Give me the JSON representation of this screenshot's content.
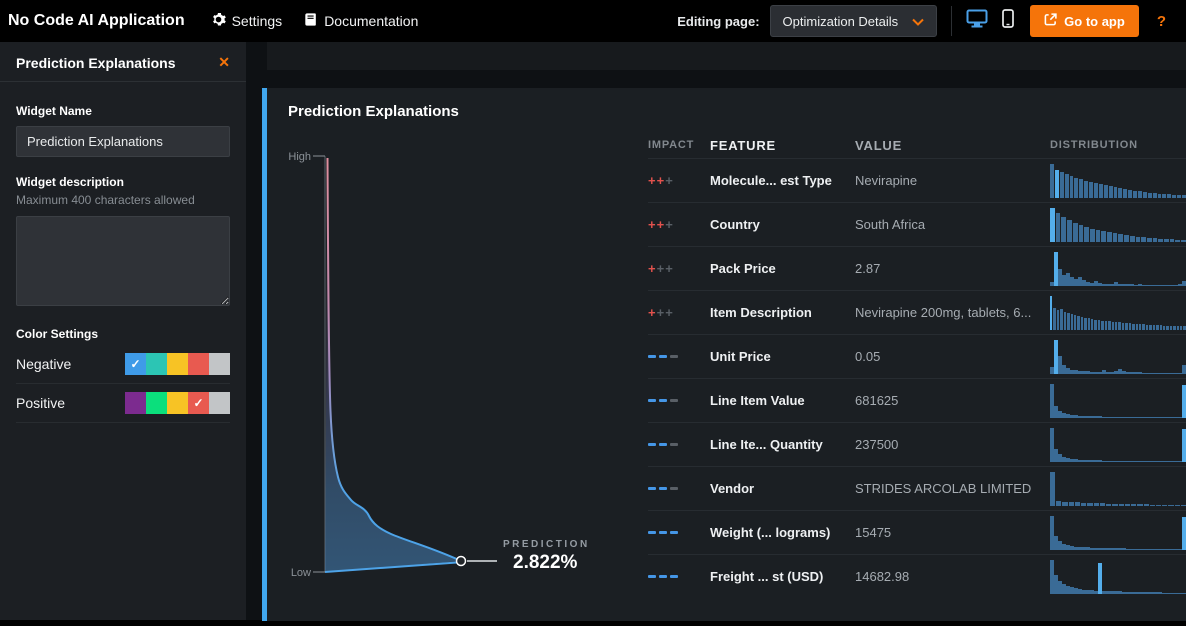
{
  "topbar": {
    "app_title": "No Code AI Application",
    "settings_label": "Settings",
    "documentation_label": "Documentation",
    "editing_page_label": "Editing page:",
    "page_selector_value": "Optimization Details",
    "go_to_app_label": "Go to app",
    "help_label": "?"
  },
  "sidebar": {
    "title": "Prediction Explanations",
    "close_glyph": "✕",
    "widget_name_label": "Widget Name",
    "widget_name_value": "Prediction Explanations",
    "widget_description_label": "Widget description",
    "widget_description_hint": "Maximum 400 characters allowed",
    "widget_description_value": "",
    "color_settings_label": "Color Settings",
    "negative_label": "Negative",
    "positive_label": "Positive",
    "negative_palette": [
      "#3f9be8",
      "#2cc5b4",
      "#f7c325",
      "#e85a50",
      "#c2c5c7"
    ],
    "negative_selected_index": 0,
    "positive_palette": [
      "#7c2b8f",
      "#0bdf7c",
      "#f7c325",
      "#e85a50",
      "#c2c5c7"
    ],
    "positive_selected_index": 3,
    "check_glyph": "✓"
  },
  "widget": {
    "title": "Prediction Explanations"
  },
  "chart_data": {
    "type": "area",
    "title": "Prediction Explanations",
    "y_axis_high_label": "High",
    "y_axis_low_label": "Low",
    "prediction_label": "PREDICTION",
    "prediction_value": "2.822%",
    "accent_color": "#41a7ee",
    "curve_top_color": "#df8f9e",
    "curve_bottom_color": "#4da3e8"
  },
  "table": {
    "columns": [
      "IMPACT",
      "FEATURE",
      "VALUE",
      "DISTRIBUTION"
    ],
    "impact_colors": {
      "positive": "#e2524d",
      "negative": "#4596e6",
      "inactive": "#595f66"
    },
    "dist_colors": {
      "bar": "#3a6b96",
      "highlight": "#54aeeb"
    },
    "rows": [
      {
        "impact_sign": "+",
        "impact_strength": 2,
        "feature": "Molecule... est Type",
        "value": "Nevirapine",
        "dist": {
          "gap": 1,
          "highlight": 1,
          "bars": [
            100,
            82,
            74,
            68,
            63,
            58,
            54,
            50,
            46,
            43,
            40,
            37,
            34,
            31,
            28,
            25,
            22,
            20,
            18,
            16,
            14,
            12,
            11,
            10,
            9,
            8,
            7,
            6
          ]
        }
      },
      {
        "impact_sign": "+",
        "impact_strength": 2,
        "feature": "Country",
        "value": "South Africa",
        "dist": {
          "gap": 1,
          "highlight": 0,
          "bars": [
            100,
            83,
            72,
            62,
            54,
            48,
            43,
            38,
            34,
            30,
            27,
            24,
            21,
            18,
            16,
            14,
            12,
            10,
            9,
            8,
            7,
            6,
            5,
            5
          ]
        }
      },
      {
        "impact_sign": "+",
        "impact_strength": 1,
        "feature": "Pack Price",
        "value": "2.87",
        "dist": {
          "gap": 0,
          "highlight": 1,
          "bars": [
            10,
            100,
            48,
            30,
            36,
            24,
            18,
            26,
            16,
            11,
            8,
            13,
            7,
            5,
            5,
            4,
            11,
            5,
            4,
            3,
            3,
            2,
            3,
            2,
            2,
            2,
            2,
            2,
            2,
            2,
            2,
            2,
            3,
            14
          ]
        }
      },
      {
        "impact_sign": "+",
        "impact_strength": 1,
        "feature": "Item Description",
        "value": "Nevirapine 200mg, tablets, 6...",
        "dist": {
          "gap": 1,
          "highlight": 0,
          "bars": [
            100,
            62,
            57,
            59,
            52,
            48,
            45,
            42,
            40,
            37,
            35,
            33,
            31,
            29,
            28,
            26,
            25,
            24,
            23,
            22,
            21,
            20,
            19,
            18,
            17,
            16,
            15,
            15,
            14,
            13,
            13,
            12,
            12,
            11,
            11,
            10,
            10,
            9,
            9,
            9
          ]
        }
      },
      {
        "impact_sign": "-",
        "impact_strength": 2,
        "feature": "Unit Price",
        "value": "0.05",
        "dist": {
          "gap": 0,
          "highlight": 1,
          "bars": [
            18,
            100,
            52,
            26,
            16,
            11,
            9,
            8,
            7,
            6,
            5,
            5,
            4,
            9,
            5,
            4,
            6,
            13,
            6,
            4,
            3,
            3,
            3,
            2,
            2,
            2,
            2,
            2,
            2,
            2,
            2,
            2,
            2,
            24
          ]
        }
      },
      {
        "impact_sign": "-",
        "impact_strength": 2,
        "feature": "Line Item Value",
        "value": "681625",
        "dist": {
          "gap": 0,
          "highlight": 33,
          "bars": [
            100,
            34,
            20,
            13,
            9,
            7,
            6,
            5,
            4,
            4,
            3,
            3,
            3,
            2,
            2,
            2,
            2,
            2,
            2,
            2,
            2,
            1,
            1,
            1,
            1,
            1,
            1,
            1,
            1,
            1,
            1,
            1,
            1,
            95
          ]
        }
      },
      {
        "impact_sign": "-",
        "impact_strength": 2,
        "feature": "Line Ite... Quantity",
        "value": "237500",
        "dist": {
          "gap": 0,
          "highlight": 33,
          "bars": [
            100,
            36,
            22,
            14,
            10,
            8,
            6,
            5,
            4,
            4,
            3,
            3,
            3,
            2,
            2,
            2,
            2,
            2,
            2,
            2,
            2,
            1,
            1,
            1,
            1,
            1,
            1,
            1,
            1,
            1,
            1,
            1,
            1,
            95
          ]
        }
      },
      {
        "impact_sign": "-",
        "impact_strength": 2,
        "feature": "Vendor",
        "value": "STRIDES ARCOLAB LIMITED",
        "dist": {
          "gap": 1,
          "highlight": null,
          "bars": [
            100,
            13,
            11,
            10,
            9,
            8,
            7,
            6,
            6,
            5,
            5,
            4,
            4,
            3,
            3,
            3,
            2,
            2,
            2,
            2,
            1,
            1
          ]
        }
      },
      {
        "impact_sign": "-",
        "impact_strength": 3,
        "feature": "Weight (... lograms)",
        "value": "15475",
        "dist": {
          "gap": 0,
          "highlight": 33,
          "bars": [
            100,
            40,
            24,
            16,
            12,
            10,
            8,
            7,
            6,
            6,
            5,
            5,
            4,
            4,
            4,
            3,
            3,
            3,
            3,
            2,
            2,
            2,
            2,
            2,
            2,
            2,
            2,
            2,
            1,
            1,
            1,
            1,
            1,
            95
          ]
        }
      },
      {
        "impact_sign": "-",
        "impact_strength": 3,
        "feature": "Freight ... st (USD)",
        "value": "14682.98",
        "dist": {
          "gap": 0,
          "highlight": 12,
          "bars": [
            100,
            55,
            38,
            28,
            22,
            18,
            15,
            13,
            11,
            10,
            9,
            8,
            90,
            8,
            7,
            7,
            6,
            6,
            5,
            5,
            5,
            4,
            4,
            4,
            3,
            3,
            3,
            3,
            2,
            2,
            2,
            2,
            2,
            2
          ]
        }
      }
    ]
  }
}
